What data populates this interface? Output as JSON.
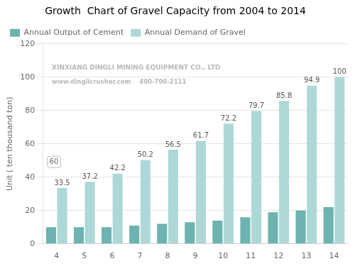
{
  "chart_data": {
    "type": "bar",
    "title": "Growth  Chart of Gravel Capacity from 2004 to 2014",
    "ylabel": "Unit ( ten thousand ton)",
    "categories": [
      "4",
      "5",
      "6",
      "7",
      "8",
      "9",
      "10",
      "11",
      "12",
      "13",
      "14"
    ],
    "series": [
      {
        "name": "Annual Output of Cement",
        "color": "#6db3b0",
        "values": [
          10,
          10,
          10,
          11,
          12,
          13,
          14,
          16,
          19,
          20,
          22
        ]
      },
      {
        "name": "Annual Demand of Gravel",
        "color": "#aed8d8",
        "values": [
          33.5,
          37.2,
          42.2,
          50.2,
          56.5,
          61.7,
          72.2,
          79.7,
          85.8,
          94.9,
          100
        ],
        "data_labels": true
      }
    ],
    "ylim": [
      0,
      120
    ],
    "yticks": [
      0,
      20,
      40,
      60,
      80,
      100,
      120
    ],
    "grid": true,
    "legend": "upper left",
    "annotations": [
      "XINXIANG DINGLI MINING EQUIPMENT CO., LTD",
      "www.dinglicrusher.com    400-700-2111",
      "60"
    ]
  }
}
